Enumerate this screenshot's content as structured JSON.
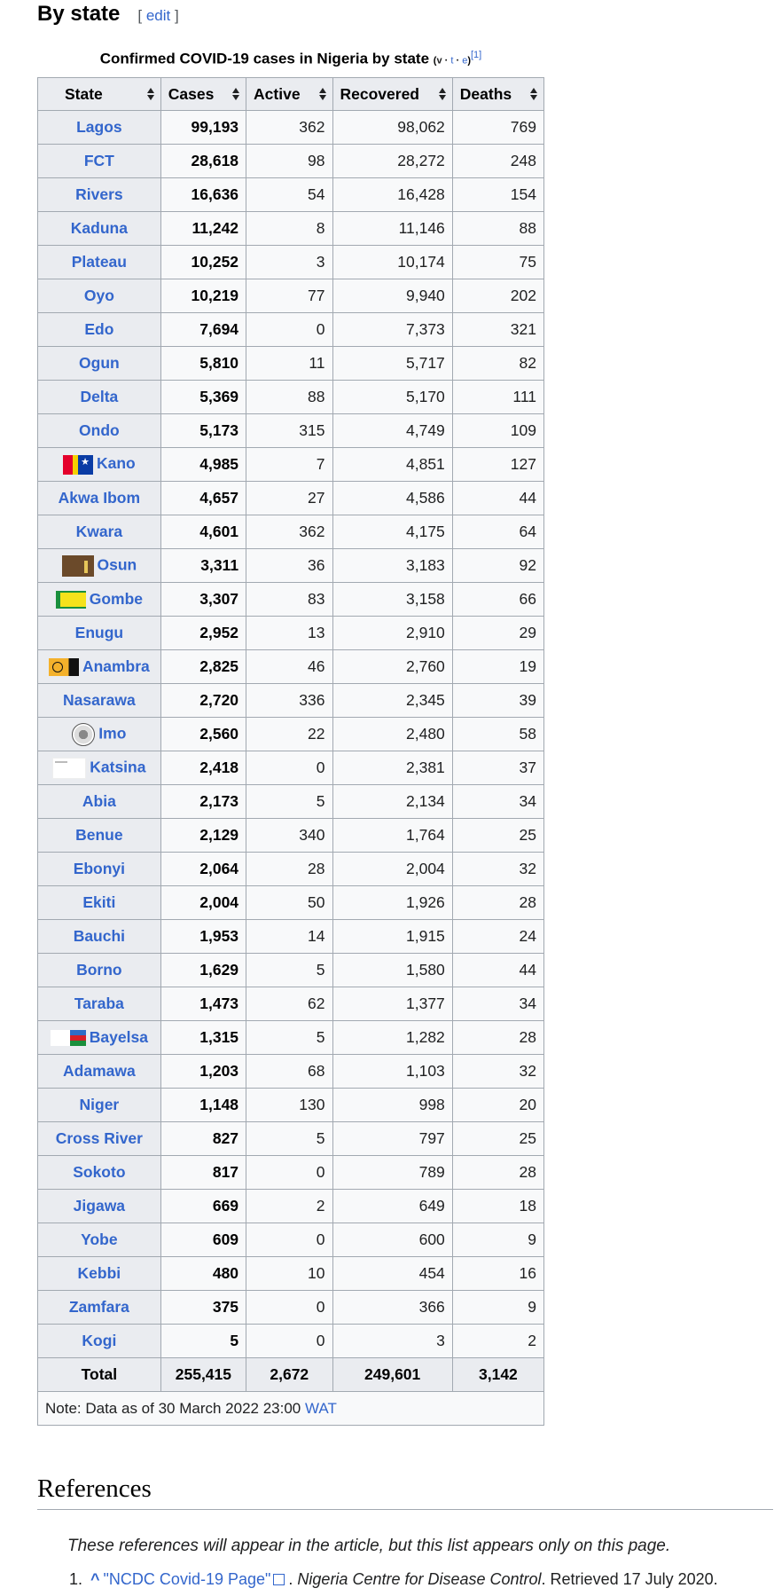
{
  "section": {
    "title": "By state",
    "edit_open": "[",
    "edit_label": "edit",
    "edit_close": "]"
  },
  "caption": {
    "text": "Confirmed COVID-19 cases in Nigeria by state",
    "vte_v": "v",
    "vte_t": "t",
    "vte_e": "e",
    "ref": "[1]"
  },
  "table": {
    "headers": [
      "State",
      "Cases",
      "Active",
      "Recovered",
      "Deaths"
    ],
    "rows": [
      {
        "state": "Lagos",
        "cases": "99,193",
        "active": "362",
        "recovered": "98,062",
        "deaths": "769"
      },
      {
        "state": "FCT",
        "cases": "28,618",
        "active": "98",
        "recovered": "28,272",
        "deaths": "248"
      },
      {
        "state": "Rivers",
        "cases": "16,636",
        "active": "54",
        "recovered": "16,428",
        "deaths": "154"
      },
      {
        "state": "Kaduna",
        "cases": "11,242",
        "active": "8",
        "recovered": "11,146",
        "deaths": "88"
      },
      {
        "state": "Plateau",
        "cases": "10,252",
        "active": "3",
        "recovered": "10,174",
        "deaths": "75"
      },
      {
        "state": "Oyo",
        "cases": "10,219",
        "active": "77",
        "recovered": "9,940",
        "deaths": "202"
      },
      {
        "state": "Edo",
        "cases": "7,694",
        "active": "0",
        "recovered": "7,373",
        "deaths": "321"
      },
      {
        "state": "Ogun",
        "cases": "5,810",
        "active": "11",
        "recovered": "5,717",
        "deaths": "82"
      },
      {
        "state": "Delta",
        "cases": "5,369",
        "active": "88",
        "recovered": "5,170",
        "deaths": "111"
      },
      {
        "state": "Ondo",
        "cases": "5,173",
        "active": "315",
        "recovered": "4,749",
        "deaths": "109"
      },
      {
        "state": "Kano",
        "cases": "4,985",
        "active": "7",
        "recovered": "4,851",
        "deaths": "127",
        "flag": "kano"
      },
      {
        "state": "Akwa Ibom",
        "cases": "4,657",
        "active": "27",
        "recovered": "4,586",
        "deaths": "44"
      },
      {
        "state": "Kwara",
        "cases": "4,601",
        "active": "362",
        "recovered": "4,175",
        "deaths": "64"
      },
      {
        "state": "Osun",
        "cases": "3,311",
        "active": "36",
        "recovered": "3,183",
        "deaths": "92",
        "flag": "osun"
      },
      {
        "state": "Gombe",
        "cases": "3,307",
        "active": "83",
        "recovered": "3,158",
        "deaths": "66",
        "flag": "gombe"
      },
      {
        "state": "Enugu",
        "cases": "2,952",
        "active": "13",
        "recovered": "2,910",
        "deaths": "29"
      },
      {
        "state": "Anambra",
        "cases": "2,825",
        "active": "46",
        "recovered": "2,760",
        "deaths": "19",
        "flag": "anambra"
      },
      {
        "state": "Nasarawa",
        "cases": "2,720",
        "active": "336",
        "recovered": "2,345",
        "deaths": "39"
      },
      {
        "state": "Imo",
        "cases": "2,560",
        "active": "22",
        "recovered": "2,480",
        "deaths": "58",
        "flag": "imo"
      },
      {
        "state": "Katsina",
        "cases": "2,418",
        "active": "0",
        "recovered": "2,381",
        "deaths": "37",
        "flag": "katsina"
      },
      {
        "state": "Abia",
        "cases": "2,173",
        "active": "5",
        "recovered": "2,134",
        "deaths": "34"
      },
      {
        "state": "Benue",
        "cases": "2,129",
        "active": "340",
        "recovered": "1,764",
        "deaths": "25"
      },
      {
        "state": "Ebonyi",
        "cases": "2,064",
        "active": "28",
        "recovered": "2,004",
        "deaths": "32"
      },
      {
        "state": "Ekiti",
        "cases": "2,004",
        "active": "50",
        "recovered": "1,926",
        "deaths": "28"
      },
      {
        "state": "Bauchi",
        "cases": "1,953",
        "active": "14",
        "recovered": "1,915",
        "deaths": "24"
      },
      {
        "state": "Borno",
        "cases": "1,629",
        "active": "5",
        "recovered": "1,580",
        "deaths": "44"
      },
      {
        "state": "Taraba",
        "cases": "1,473",
        "active": "62",
        "recovered": "1,377",
        "deaths": "34"
      },
      {
        "state": "Bayelsa",
        "cases": "1,315",
        "active": "5",
        "recovered": "1,282",
        "deaths": "28",
        "flag": "bayelsa"
      },
      {
        "state": "Adamawa",
        "cases": "1,203",
        "active": "68",
        "recovered": "1,103",
        "deaths": "32"
      },
      {
        "state": "Niger",
        "cases": "1,148",
        "active": "130",
        "recovered": "998",
        "deaths": "20"
      },
      {
        "state": "Cross River",
        "cases": "827",
        "active": "5",
        "recovered": "797",
        "deaths": "25"
      },
      {
        "state": "Sokoto",
        "cases": "817",
        "active": "0",
        "recovered": "789",
        "deaths": "28"
      },
      {
        "state": "Jigawa",
        "cases": "669",
        "active": "2",
        "recovered": "649",
        "deaths": "18"
      },
      {
        "state": "Yobe",
        "cases": "609",
        "active": "0",
        "recovered": "600",
        "deaths": "9"
      },
      {
        "state": "Kebbi",
        "cases": "480",
        "active": "10",
        "recovered": "454",
        "deaths": "16"
      },
      {
        "state": "Zamfara",
        "cases": "375",
        "active": "0",
        "recovered": "366",
        "deaths": "9"
      },
      {
        "state": "Kogi",
        "cases": "5",
        "active": "0",
        "recovered": "3",
        "deaths": "2"
      }
    ],
    "total": {
      "label": "Total",
      "cases": "255,415",
      "active": "2,672",
      "recovered": "249,601",
      "deaths": "3,142"
    },
    "note_prefix": "Note: Data as of 30 March 2022 23:00",
    "note_link": "WAT"
  },
  "references": {
    "title": "References",
    "note": "These references will appear in the article, but this list appears only on this page.",
    "items": [
      {
        "num": "1.",
        "caret": "^",
        "link": "\"NCDC Covid-19 Page\"",
        "publisher": "Nigeria Centre for Disease Control",
        "retrieved": ". Retrieved 17 July 2020."
      }
    ]
  },
  "colors": {
    "link": "#3366cc",
    "header_bg": "#eaecf0",
    "cell_bg": "#f8f9fa",
    "border": "#a2a9b1"
  }
}
